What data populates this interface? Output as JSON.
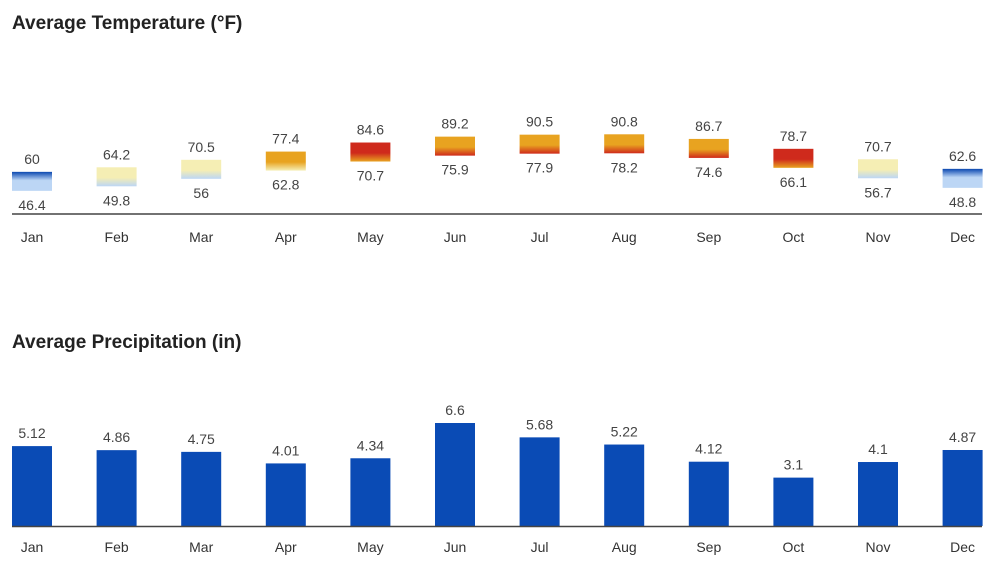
{
  "chart_data": [
    {
      "type": "bar",
      "subtype": "range",
      "title": "Average Temperature (°F)",
      "categories": [
        "Jan",
        "Feb",
        "Mar",
        "Apr",
        "May",
        "Jun",
        "Jul",
        "Aug",
        "Sep",
        "Oct",
        "Nov",
        "Dec"
      ],
      "series": [
        {
          "name": "",
          "values": [
            60,
            64.2,
            70.5,
            77.4,
            84.6,
            89.2,
            90.5,
            90.8,
            86.7,
            78.7,
            70.7,
            62.6
          ]
        },
        {
          "name": "",
          "values": [
            46.4,
            49.8,
            56,
            62.8,
            70.7,
            75.9,
            77.9,
            78.2,
            74.6,
            66.1,
            56.7,
            48.8
          ]
        }
      ],
      "xlabel": "",
      "ylabel": "",
      "grid": false
    },
    {
      "type": "bar",
      "title": "Average Precipitation (in)",
      "categories": [
        "Jan",
        "Feb",
        "Mar",
        "Apr",
        "May",
        "Jun",
        "Jul",
        "Aug",
        "Sep",
        "Oct",
        "Nov",
        "Dec"
      ],
      "values": [
        5.12,
        4.86,
        4.75,
        4.01,
        4.34,
        6.6,
        5.68,
        5.22,
        4.12,
        3.1,
        4.1,
        4.87
      ],
      "xlabel": "",
      "ylabel": "",
      "ylim": [
        0,
        6.6
      ],
      "grid": false
    }
  ],
  "colors": {
    "precip_bar": "#0a4bb5",
    "axis": "#444444",
    "temp_cold": "#0a47b0",
    "temp_cool": "#bcd6f5",
    "temp_mild": "#f5eeb4",
    "temp_warm": "#e8a320",
    "temp_hot": "#cf2a1c"
  }
}
